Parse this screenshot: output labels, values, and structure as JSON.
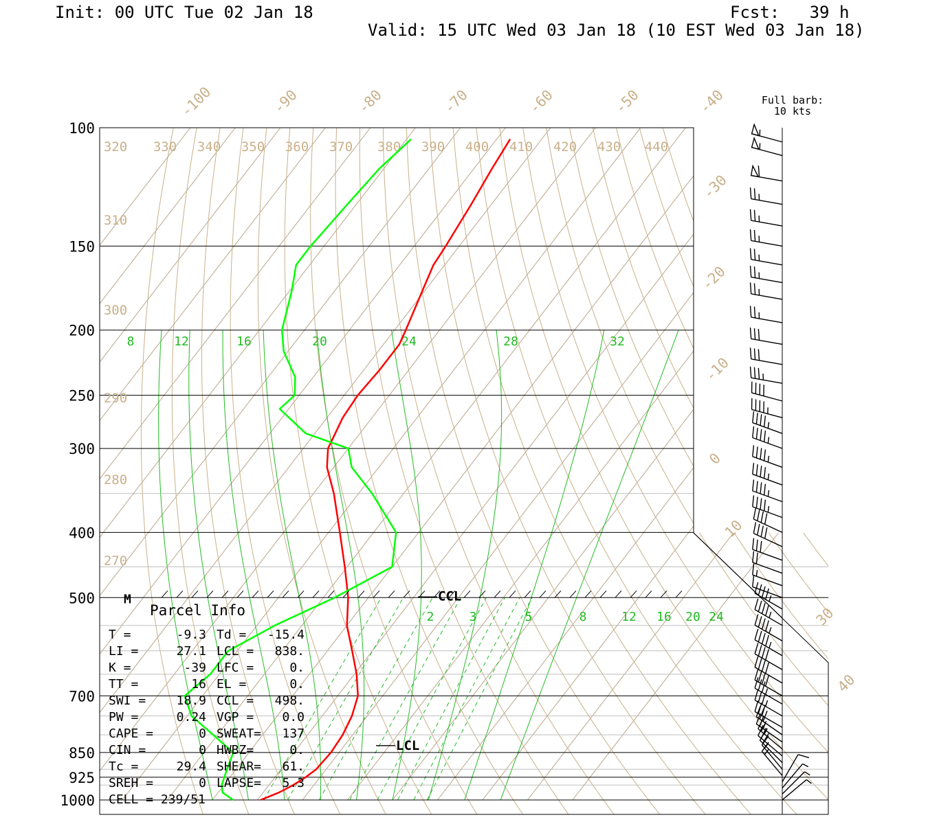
{
  "header": {
    "init": "Init: 00 UTC Tue 02 Jan 18",
    "fcst": "Fcst:   39 h",
    "valid": "Valid: 15 UTC Wed 03 Jan 18 (10 EST Wed 03 Jan 18)"
  },
  "barb_legend": {
    "line1": "Full barb:",
    "line2": "10 kts"
  },
  "parcel_info": {
    "title": "Parcel Info",
    "rows": [
      [
        "T  =",
        "-9.3",
        "Td =",
        "-15.4"
      ],
      [
        "LI =",
        "27.1",
        "LCL =",
        "838."
      ],
      [
        "K  =",
        "-39",
        "LFC =",
        "0."
      ],
      [
        "TT =",
        "16",
        "EL  =",
        "0."
      ],
      [
        "SWI =",
        "18.9",
        "CCL =",
        "498."
      ],
      [
        "PW =",
        "0.24",
        "VGP =",
        "0.0"
      ],
      [
        "CAPE =",
        "0",
        "SWEAT=",
        "137"
      ],
      [
        "CIN =",
        "0",
        "HWBZ=",
        "0."
      ],
      [
        "Tc =",
        "29.4",
        "SHEAR=",
        "61."
      ],
      [
        "SREH =",
        "0",
        "LAPSE=",
        "5.3"
      ],
      [
        "CELL = 239/51",
        "",
        "",
        ""
      ]
    ]
  },
  "chart_data": {
    "type": "line",
    "title": "",
    "pressure_levels": [
      100,
      150,
      200,
      250,
      300,
      400,
      500,
      700,
      850,
      925,
      1000
    ],
    "pressure_labels": [
      "100",
      "150",
      "200",
      "250",
      "300",
      "400",
      "500",
      "700",
      "850",
      "925",
      "1000"
    ],
    "skew_temperature_labels": [
      "-100",
      "-90",
      "-80",
      "-70",
      "-60",
      "-50",
      "-40",
      "-30",
      "-20",
      "-10",
      "0",
      "10",
      "30",
      "40"
    ],
    "theta_labels": [
      "320",
      "330",
      "340",
      "350",
      "360",
      "370",
      "380",
      "390",
      "400",
      "410",
      "420",
      "430",
      "440",
      "310",
      "300",
      "290",
      "280",
      "270"
    ],
    "mixing_ratio_labels_upper": [
      "8",
      "12",
      "16",
      "20",
      "24",
      "28",
      "32"
    ],
    "mixing_ratio_labels_lower": [
      "2",
      "3",
      "5",
      "8",
      "12",
      "16",
      "20",
      "24"
    ],
    "annotations": [
      "M",
      "CCL",
      "LCL"
    ],
    "series": [
      {
        "name": "Temperature",
        "color": "#ff0000",
        "points": [
          [
            1000,
            -9.3
          ],
          [
            975,
            -6.5
          ],
          [
            950,
            -4.6
          ],
          [
            925,
            -3.2
          ],
          [
            900,
            -2.2
          ],
          [
            850,
            -1.8
          ],
          [
            800,
            -2.2
          ],
          [
            750,
            -3.4
          ],
          [
            700,
            -5.5
          ],
          [
            650,
            -9.5
          ],
          [
            600,
            -14.5
          ],
          [
            550,
            -20
          ],
          [
            500,
            -24.5
          ],
          [
            450,
            -30.5
          ],
          [
            400,
            -37.5
          ],
          [
            350,
            -45.5
          ],
          [
            320,
            -51.5
          ],
          [
            300,
            -54.5
          ],
          [
            270,
            -56.5
          ],
          [
            250,
            -57
          ],
          [
            230,
            -56.5
          ],
          [
            210,
            -56.5
          ],
          [
            200,
            -57.5
          ],
          [
            175,
            -60.5
          ],
          [
            160,
            -62.5
          ],
          [
            150,
            -63
          ],
          [
            130,
            -64.5
          ],
          [
            115,
            -66
          ],
          [
            104,
            -67
          ]
        ]
      },
      {
        "name": "Dewpoint",
        "color": "#00ff00",
        "points": [
          [
            1000,
            -15.4
          ],
          [
            975,
            -19
          ],
          [
            950,
            -20.5
          ],
          [
            900,
            -22
          ],
          [
            850,
            -23.5
          ],
          [
            800,
            -31
          ],
          [
            750,
            -39
          ],
          [
            700,
            -44
          ],
          [
            650,
            -42
          ],
          [
            600,
            -42
          ],
          [
            550,
            -36
          ],
          [
            500,
            -27.5
          ],
          [
            450,
            -20
          ],
          [
            400,
            -25
          ],
          [
            350,
            -37
          ],
          [
            320,
            -46
          ],
          [
            300,
            -50
          ],
          [
            285,
            -62
          ],
          [
            262,
            -72
          ],
          [
            250,
            -71
          ],
          [
            235,
            -74
          ],
          [
            215,
            -81
          ],
          [
            200,
            -85
          ],
          [
            175,
            -89.5
          ],
          [
            160,
            -93
          ],
          [
            150,
            -93
          ],
          [
            130,
            -92
          ],
          [
            115,
            -91
          ],
          [
            104,
            -89
          ]
        ]
      }
    ],
    "wind_profile": [
      [
        1000,
        50,
        5
      ],
      [
        980,
        45,
        5
      ],
      [
        960,
        40,
        5
      ],
      [
        940,
        30,
        10
      ],
      [
        920,
        320,
        15
      ],
      [
        900,
        320,
        15
      ],
      [
        880,
        315,
        20
      ],
      [
        860,
        310,
        20
      ],
      [
        840,
        310,
        25
      ],
      [
        820,
        305,
        25
      ],
      [
        800,
        305,
        30
      ],
      [
        780,
        300,
        30
      ],
      [
        750,
        300,
        35
      ],
      [
        720,
        300,
        35
      ],
      [
        700,
        300,
        40
      ],
      [
        670,
        300,
        40
      ],
      [
        640,
        300,
        40
      ],
      [
        610,
        300,
        45
      ],
      [
        580,
        300,
        45
      ],
      [
        550,
        300,
        45
      ],
      [
        520,
        300,
        45
      ],
      [
        500,
        290,
        10
      ],
      [
        480,
        290,
        15
      ],
      [
        460,
        290,
        20
      ],
      [
        440,
        290,
        30
      ],
      [
        420,
        295,
        40
      ],
      [
        400,
        295,
        40
      ],
      [
        380,
        290,
        45
      ],
      [
        360,
        290,
        45
      ],
      [
        340,
        290,
        45
      ],
      [
        320,
        290,
        45
      ],
      [
        300,
        290,
        45
      ],
      [
        285,
        290,
        45
      ],
      [
        270,
        285,
        45
      ],
      [
        255,
        285,
        40
      ],
      [
        240,
        280,
        35
      ],
      [
        225,
        280,
        30
      ],
      [
        210,
        280,
        30
      ],
      [
        195,
        280,
        25
      ],
      [
        180,
        280,
        25
      ],
      [
        170,
        280,
        25
      ],
      [
        160,
        280,
        25
      ],
      [
        150,
        280,
        25
      ],
      [
        140,
        280,
        25
      ],
      [
        130,
        280,
        25
      ],
      [
        120,
        280,
        60
      ],
      [
        110,
        285,
        55
      ],
      [
        105,
        285,
        55
      ]
    ]
  }
}
